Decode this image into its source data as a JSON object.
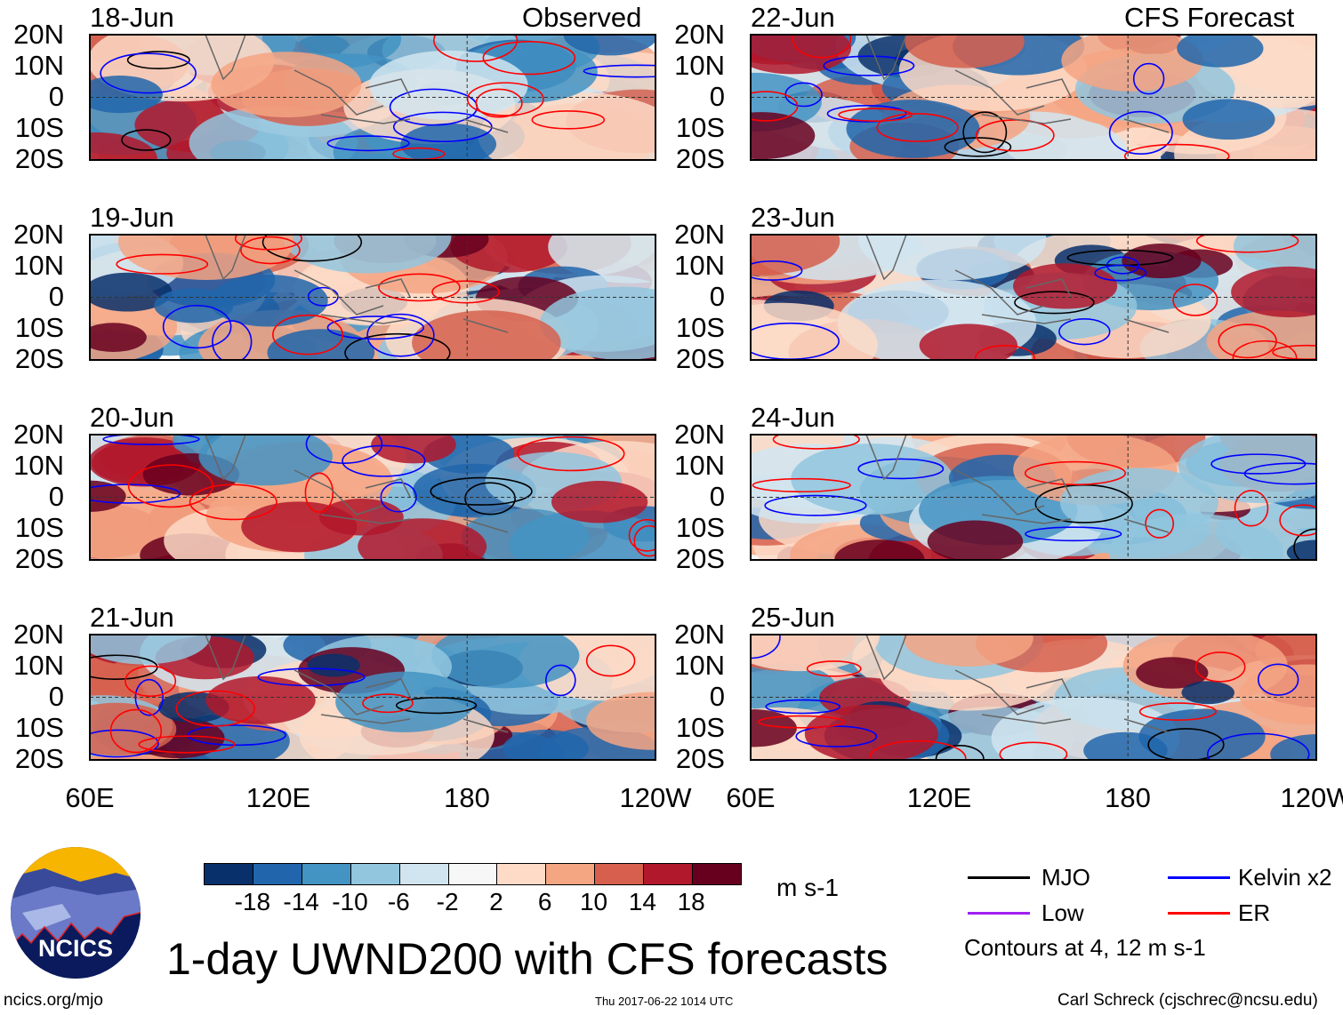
{
  "title": "1-day UWND200 with CFS forecasts",
  "columns": [
    {
      "header": "Observed",
      "panels": [
        "18-Jun",
        "19-Jun",
        "20-Jun",
        "21-Jun"
      ]
    },
    {
      "header": "CFS Forecast",
      "panels": [
        "22-Jun",
        "23-Jun",
        "24-Jun",
        "25-Jun"
      ]
    }
  ],
  "lat_labels": [
    "20N",
    "10N",
    "0",
    "10S",
    "20S"
  ],
  "lon_labels": [
    "60E",
    "120E",
    "180",
    "120W"
  ],
  "colorbar": {
    "unit": "m s-1",
    "ticks": [
      "-18",
      "-14",
      "-10",
      "-6",
      "-2",
      "2",
      "6",
      "10",
      "14",
      "18"
    ],
    "colors": [
      "#08306b",
      "#2166ac",
      "#4393c3",
      "#92c5de",
      "#d1e5f0",
      "#f7f7f7",
      "#fddbc7",
      "#f4a582",
      "#d6604d",
      "#b2182b",
      "#67001f"
    ]
  },
  "legend": {
    "items": [
      {
        "label": "MJO",
        "color": "#000000"
      },
      {
        "label": "Kelvin x2",
        "color": "#0000ff"
      },
      {
        "label": "Low",
        "color": "#a020f0"
      },
      {
        "label": "ER",
        "color": "#ff0000"
      }
    ],
    "note": "Contours at 4, 12 m s-1"
  },
  "logo_text": "NCICS",
  "footer": {
    "left": "ncics.org/mjo",
    "center": "Thu 2017-06-22 1014 UTC",
    "right": "Carl Schreck (cjschrec@ncsu.edu)"
  }
}
